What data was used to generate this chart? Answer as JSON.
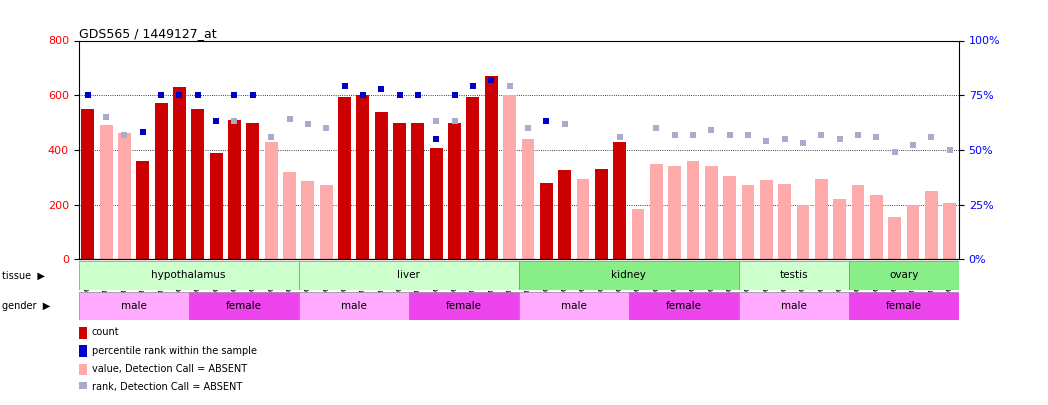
{
  "title": "GDS565 / 1449127_at",
  "samples": [
    "GSM19215",
    "GSM19216",
    "GSM19217",
    "GSM19218",
    "GSM19219",
    "GSM19220",
    "GSM19221",
    "GSM19222",
    "GSM19223",
    "GSM19224",
    "GSM19225",
    "GSM19226",
    "GSM19227",
    "GSM19228",
    "GSM19229",
    "GSM19230",
    "GSM19231",
    "GSM19232",
    "GSM19233",
    "GSM19234",
    "GSM19235",
    "GSM19236",
    "GSM19237",
    "GSM19238",
    "GSM19239",
    "GSM19240",
    "GSM19241",
    "GSM19242",
    "GSM19243",
    "GSM19244",
    "GSM19245",
    "GSM19246",
    "GSM19247",
    "GSM19248",
    "GSM19249",
    "GSM19250",
    "GSM19251",
    "GSM19252",
    "GSM19253",
    "GSM19254",
    "GSM19255",
    "GSM19256",
    "GSM19257",
    "GSM19258",
    "GSM19259",
    "GSM19260",
    "GSM19261",
    "GSM19262"
  ],
  "count_values": [
    550,
    0,
    0,
    360,
    570,
    630,
    550,
    390,
    510,
    500,
    0,
    0,
    0,
    0,
    595,
    600,
    540,
    500,
    500,
    405,
    500,
    595,
    670,
    0,
    0,
    280,
    325,
    0,
    330,
    430,
    0,
    0,
    0,
    0,
    0,
    0,
    0,
    0,
    0,
    0,
    0,
    0,
    0,
    0,
    0,
    0,
    0,
    0
  ],
  "absent_bar_values": [
    0,
    490,
    460,
    0,
    0,
    0,
    0,
    0,
    0,
    460,
    430,
    320,
    285,
    270,
    0,
    0,
    0,
    0,
    0,
    0,
    0,
    0,
    0,
    600,
    440,
    0,
    0,
    295,
    0,
    390,
    185,
    350,
    340,
    360,
    340,
    305,
    270,
    290,
    275,
    200,
    295,
    220,
    270,
    235,
    155,
    200,
    250,
    205
  ],
  "percentile_rank": [
    75,
    0,
    0,
    58,
    75,
    75,
    75,
    63,
    75,
    75,
    0,
    0,
    0,
    0,
    79,
    75,
    78,
    75,
    75,
    55,
    75,
    79,
    82,
    0,
    0,
    63,
    0,
    0,
    0,
    0,
    0,
    0,
    0,
    0,
    0,
    0,
    0,
    0,
    0,
    0,
    0,
    0,
    0,
    0,
    0,
    0,
    0,
    0
  ],
  "absent_rank_values": [
    0,
    65,
    57,
    0,
    0,
    0,
    0,
    0,
    63,
    0,
    56,
    64,
    62,
    60,
    0,
    0,
    0,
    0,
    0,
    63,
    63,
    0,
    0,
    79,
    60,
    0,
    62,
    0,
    0,
    56,
    0,
    60,
    57,
    57,
    59,
    57,
    57,
    54,
    55,
    53,
    57,
    55,
    57,
    56,
    49,
    52,
    56,
    50
  ],
  "tissue_groups": [
    {
      "name": "hypothalamus",
      "start": 0,
      "end": 11,
      "color": "#ccffcc"
    },
    {
      "name": "liver",
      "start": 12,
      "end": 23,
      "color": "#ccffcc"
    },
    {
      "name": "kidney",
      "start": 24,
      "end": 35,
      "color": "#88ee88"
    },
    {
      "name": "testis",
      "start": 36,
      "end": 41,
      "color": "#ccffcc"
    },
    {
      "name": "ovary",
      "start": 42,
      "end": 47,
      "color": "#88ee88"
    }
  ],
  "gender_groups": [
    {
      "name": "male",
      "start": 0,
      "end": 5,
      "color": "#ffaaff"
    },
    {
      "name": "female",
      "start": 6,
      "end": 11,
      "color": "#ee44ee"
    },
    {
      "name": "male",
      "start": 12,
      "end": 17,
      "color": "#ffaaff"
    },
    {
      "name": "female",
      "start": 18,
      "end": 23,
      "color": "#ee44ee"
    },
    {
      "name": "male",
      "start": 24,
      "end": 29,
      "color": "#ffaaff"
    },
    {
      "name": "female",
      "start": 30,
      "end": 35,
      "color": "#ee44ee"
    },
    {
      "name": "male",
      "start": 36,
      "end": 41,
      "color": "#ffaaff"
    },
    {
      "name": "female",
      "start": 42,
      "end": 47,
      "color": "#ee44ee"
    }
  ],
  "color_count": "#cc0000",
  "color_absent_bar": "#ffaaaa",
  "color_percentile": "#0000cc",
  "color_absent_rank": "#aaaacc",
  "ylim_left": [
    0,
    800
  ],
  "ylim_right": [
    0,
    100
  ],
  "yticks_left": [
    0,
    200,
    400,
    600,
    800
  ],
  "yticks_right": [
    0,
    25,
    50,
    75,
    100
  ],
  "legend_items": [
    {
      "color": "#cc0000",
      "label": "count"
    },
    {
      "color": "#0000cc",
      "label": "percentile rank within the sample"
    },
    {
      "color": "#ffaaaa",
      "label": "value, Detection Call = ABSENT"
    },
    {
      "color": "#aaaacc",
      "label": "rank, Detection Call = ABSENT"
    }
  ]
}
